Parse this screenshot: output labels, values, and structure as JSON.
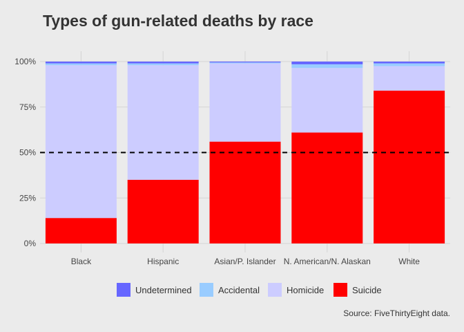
{
  "chart_data": {
    "type": "bar",
    "stacked": true,
    "title": "Types of gun-related deaths by race",
    "caption": "Source: FiveThirtyEight data.",
    "xlabel": "",
    "ylabel": "",
    "categories": [
      "Black",
      "Hispanic",
      "Asian/P. Islander",
      "N. American/N. Alaskan",
      "White"
    ],
    "ylim": [
      0,
      1
    ],
    "yticks": [
      0,
      0.25,
      0.5,
      0.75,
      1
    ],
    "ytick_labels": [
      "0%",
      "25%",
      "50%",
      "75%",
      "100%"
    ],
    "grid": true,
    "legend_position": "bottom",
    "reference_line": {
      "y": 0.5,
      "style": "dashed"
    },
    "series": [
      {
        "name": "Suicide",
        "color": "#ff0000",
        "values": [
          0.14,
          0.35,
          0.56,
          0.61,
          0.84
        ]
      },
      {
        "name": "Homicide",
        "color": "#ccccff",
        "values": [
          0.84,
          0.63,
          0.43,
          0.355,
          0.135
        ]
      },
      {
        "name": "Accidental",
        "color": "#99ccff",
        "values": [
          0.01,
          0.01,
          0.005,
          0.02,
          0.015
        ]
      },
      {
        "name": "Undetermined",
        "color": "#6666ff",
        "values": [
          0.01,
          0.01,
          0.005,
          0.015,
          0.01
        ]
      }
    ],
    "legend_order": [
      "Undetermined",
      "Accidental",
      "Homicide",
      "Suicide"
    ]
  }
}
